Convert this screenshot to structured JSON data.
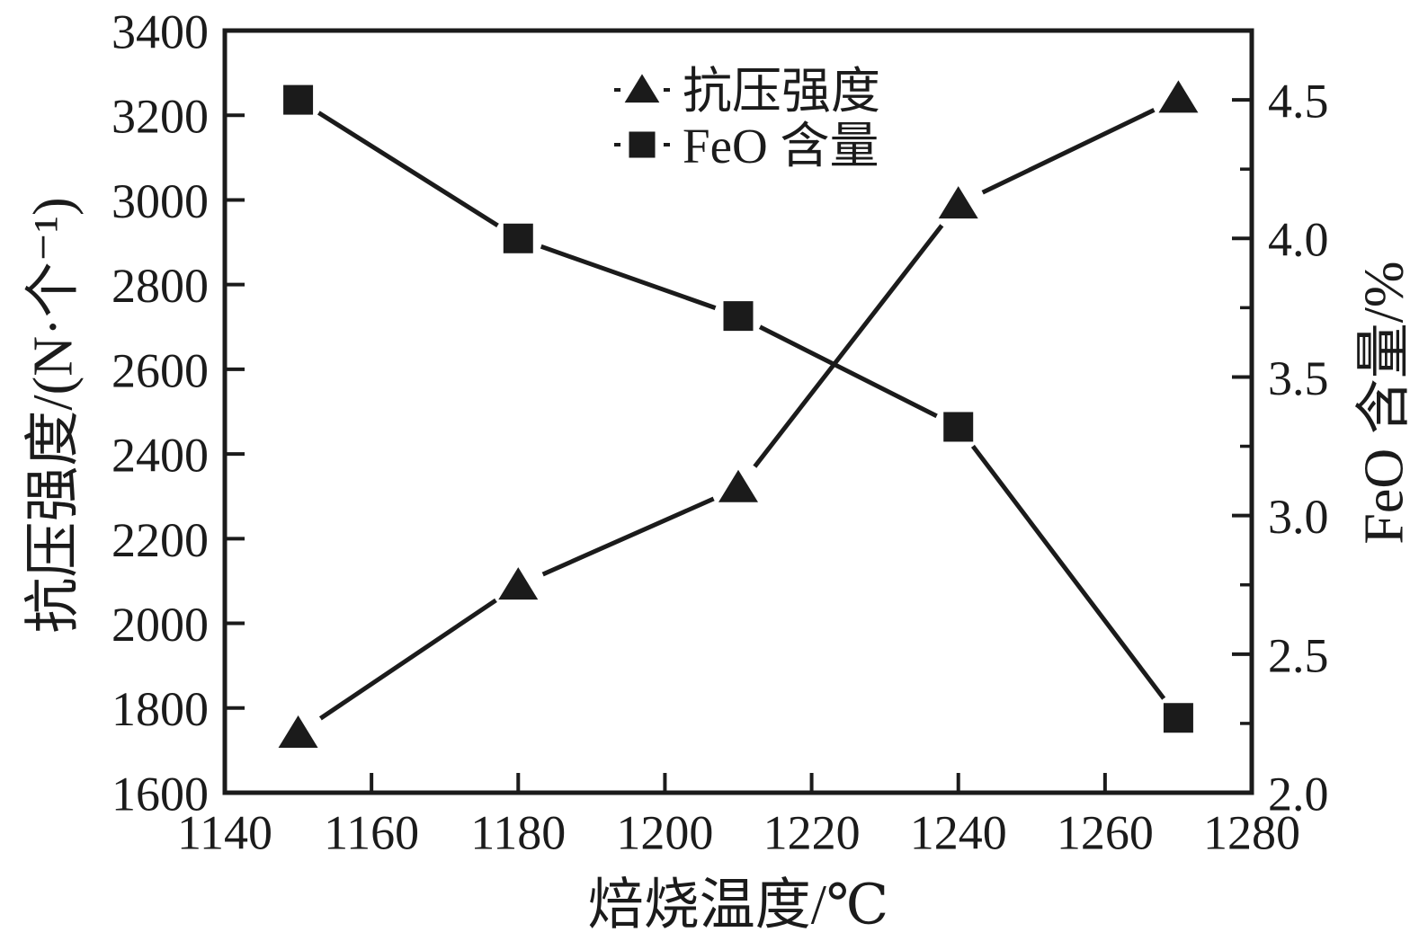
{
  "figure": {
    "background": "#ffffff",
    "ink": "#1b1b1b"
  },
  "chart_data": {
    "type": "line",
    "title": "",
    "xlabel": "焙烧温度/℃",
    "ylabel_left": "抗压强度/(N·个⁻¹)",
    "ylabel_right": "FeO 含量/%",
    "grid": false,
    "legend_position": "top-center-inside",
    "x_range": [
      1140,
      1280
    ],
    "x_ticks": [
      1140,
      1160,
      1180,
      1200,
      1220,
      1240,
      1260,
      1280
    ],
    "y_left_range": [
      1600,
      3400
    ],
    "y_left_ticks": [
      1600,
      1800,
      2000,
      2200,
      2400,
      2600,
      2800,
      3000,
      3200,
      3400
    ],
    "y_right_range": [
      2.0,
      4.75
    ],
    "y_right_ticks": [
      "2.0",
      "2.5",
      "3.0",
      "3.5",
      "4.0",
      "4.5"
    ],
    "y_right_minor_step": 0.25,
    "x": [
      1150,
      1180,
      1210,
      1240,
      1270
    ],
    "series": [
      {
        "name": "抗压强度",
        "axis": "left",
        "marker": "triangle",
        "color": "#1b1b1b",
        "values": [
          1740,
          2090,
          2320,
          2990,
          3240
        ]
      },
      {
        "name": "FeO 含量",
        "axis": "right",
        "marker": "square",
        "color": "#1b1b1b",
        "values": [
          4.5,
          4.0,
          3.72,
          3.32,
          2.27
        ]
      }
    ]
  }
}
